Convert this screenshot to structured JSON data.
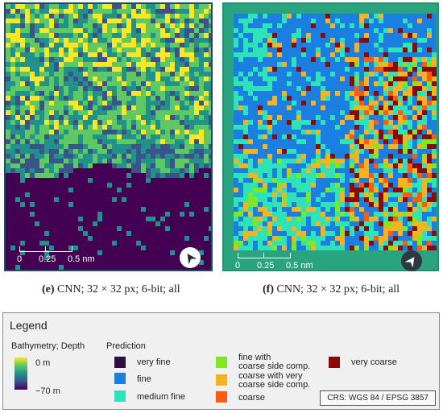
{
  "panels": [
    {
      "id": "e",
      "caption_letter": "(e)",
      "caption_text": " CNN; 32 × 32 px; 6-bit; all",
      "scale_labels": [
        "0",
        "0.25",
        "0.5 nm"
      ],
      "compass_icon": "north-arrow-icon"
    },
    {
      "id": "f",
      "caption_letter": "(f)",
      "caption_text": " CNN; 32 × 32 px; 6-bit; all",
      "scale_labels": [
        "0",
        "0.25",
        "0.5 nm"
      ],
      "compass_icon": "north-arrow-icon"
    }
  ],
  "legend": {
    "title": "Legend",
    "bathymetry": {
      "label": "Bathymetry; Depth",
      "max_label": "0 m",
      "min_label": "−70 m",
      "colors": [
        "#fde725",
        "#5ec962",
        "#21918c",
        "#3b528b",
        "#440154"
      ]
    },
    "prediction": {
      "label": "Prediction",
      "classes": [
        {
          "label": "very fine",
          "color": "#2d0f3e"
        },
        {
          "label": "fine",
          "color": "#1a7fe0"
        },
        {
          "label": "medium fine",
          "color": "#2ee3b8"
        },
        {
          "label": "fine with\ncoarse side comp.",
          "color": "#7fe81e"
        },
        {
          "label": "coarse with very\ncoarse side comp.",
          "color": "#f5b320"
        },
        {
          "label": "coarse",
          "color": "#ff5a10"
        },
        {
          "label": "very coarse",
          "color": "#8a0a0a"
        }
      ]
    },
    "crs": "CRS: WGS 84 / EPSG 3857"
  }
}
